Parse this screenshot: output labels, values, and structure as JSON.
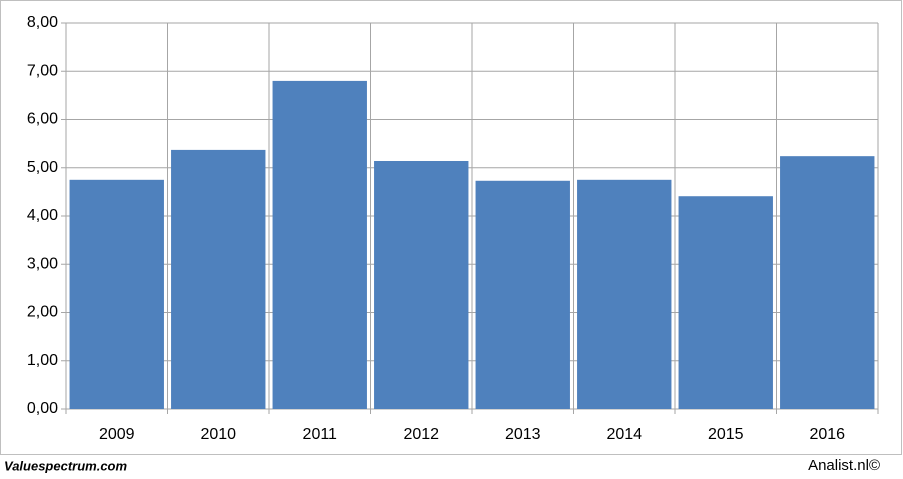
{
  "chart_data": {
    "type": "bar",
    "categories": [
      "2009",
      "2010",
      "2011",
      "2012",
      "2013",
      "2014",
      "2015",
      "2016"
    ],
    "values": [
      4.75,
      5.37,
      6.8,
      5.14,
      4.73,
      4.75,
      4.41,
      5.24
    ],
    "color": "#4f81bd",
    "ylim": [
      0,
      8
    ],
    "yticks": [
      {
        "value": 0,
        "label": "0,00"
      },
      {
        "value": 1,
        "label": "1,00"
      },
      {
        "value": 2,
        "label": "2,00"
      },
      {
        "value": 3,
        "label": "3,00"
      },
      {
        "value": 4,
        "label": "4,00"
      },
      {
        "value": 5,
        "label": "5,00"
      },
      {
        "value": 6,
        "label": "6,00"
      },
      {
        "value": 7,
        "label": "7,00"
      },
      {
        "value": 8,
        "label": "8,00"
      }
    ],
    "grid": true
  },
  "footer": {
    "left": "Valuespectrum.com",
    "right": "Analist.nl©"
  }
}
